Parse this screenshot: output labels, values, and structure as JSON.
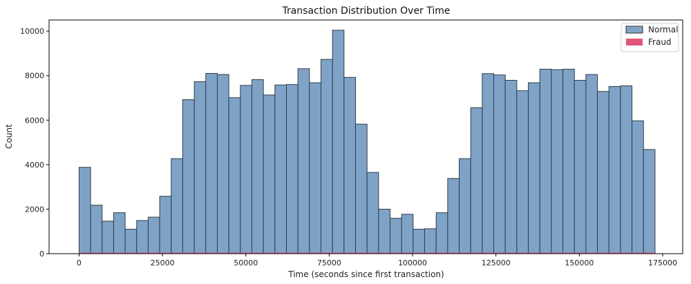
{
  "chart_data": {
    "type": "bar",
    "title": "Transaction Distribution Over Time",
    "xlabel": "Time (seconds since first transaction)",
    "ylabel": "Count",
    "xlim": [
      -9000,
      181000
    ],
    "ylim": [
      0,
      10500
    ],
    "xticks": [
      0,
      25000,
      50000,
      75000,
      100000,
      125000,
      150000,
      175000
    ],
    "yticks": [
      0,
      2000,
      4000,
      6000,
      8000,
      10000
    ],
    "bin_start": 0,
    "bin_width": 3454,
    "legend_position": "top-right",
    "grid": false,
    "series": [
      {
        "name": "Normal",
        "color": "#7fa3c7",
        "values": [
          3880,
          2180,
          1460,
          1840,
          1100,
          1490,
          1640,
          2580,
          4270,
          6920,
          7730,
          8100,
          8050,
          7010,
          7560,
          7820,
          7130,
          7580,
          7600,
          8310,
          7680,
          8730,
          10040,
          7920,
          5820,
          3650,
          2000,
          1590,
          1770,
          1100,
          1120,
          1840,
          3380,
          4270,
          6560,
          8090,
          8030,
          7790,
          7320,
          7680,
          8290,
          8270,
          8290,
          7790,
          8050,
          7290,
          7510,
          7540,
          5970,
          4680
        ]
      },
      {
        "name": "Fraud",
        "color": "#e0567a",
        "values": [
          5,
          6,
          4,
          12,
          6,
          7,
          5,
          4,
          6,
          8,
          9,
          14,
          9,
          7,
          6,
          9,
          11,
          7,
          5,
          8,
          6,
          9,
          8,
          7,
          6,
          12,
          8,
          9,
          11,
          6,
          5,
          7,
          6,
          6,
          7,
          10,
          8,
          6,
          7,
          6,
          9,
          7,
          8,
          6,
          7,
          8,
          7,
          9,
          6,
          5
        ]
      }
    ]
  }
}
